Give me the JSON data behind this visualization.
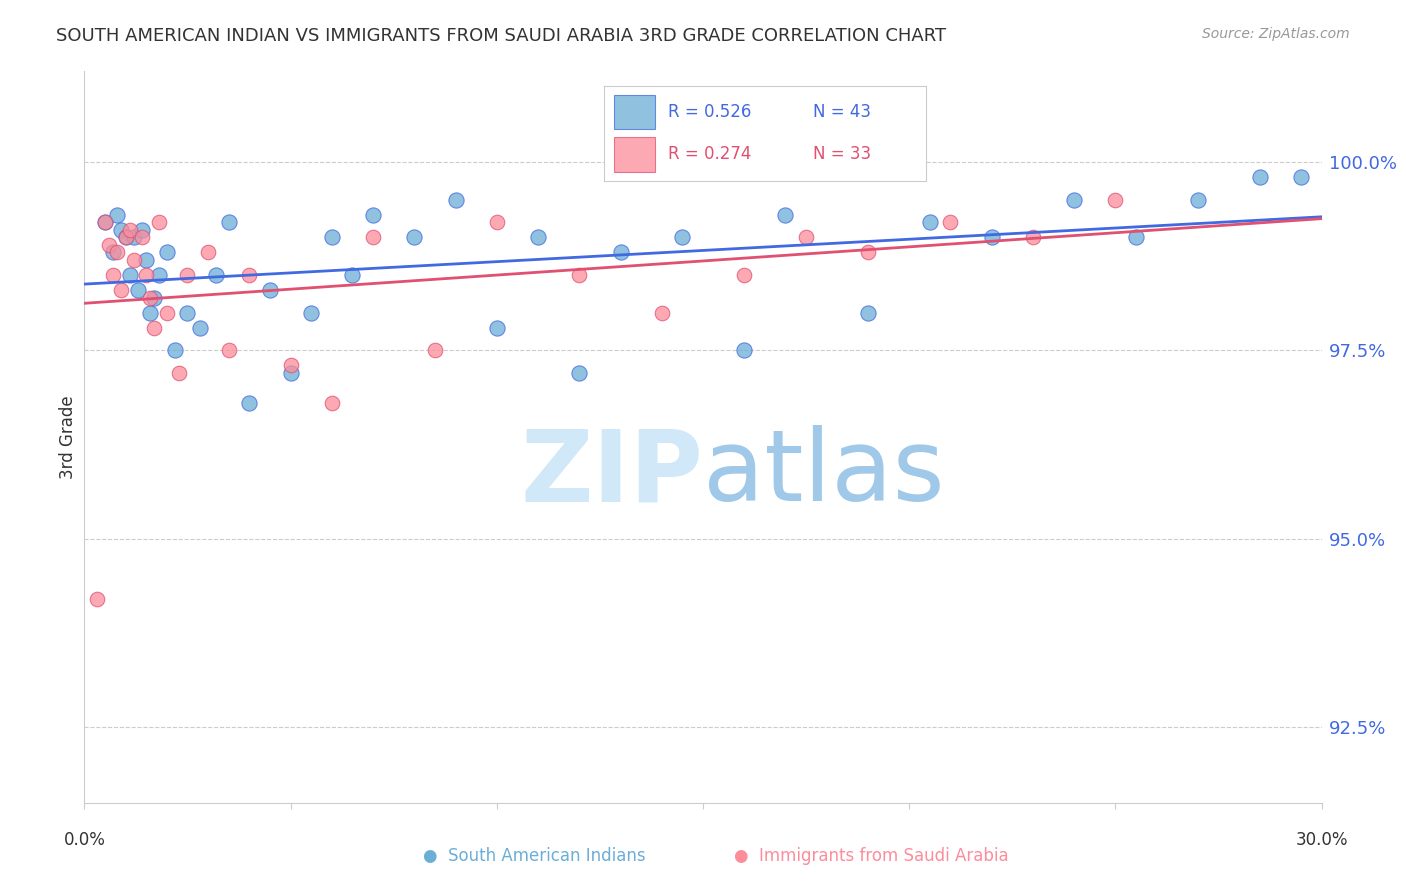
{
  "title": "SOUTH AMERICAN INDIAN VS IMMIGRANTS FROM SAUDI ARABIA 3RD GRADE CORRELATION CHART",
  "source": "Source: ZipAtlas.com",
  "ylabel": "3rd Grade",
  "y_ticks": [
    92.5,
    95.0,
    97.5,
    100.0
  ],
  "y_tick_labels": [
    "92.5%",
    "95.0%",
    "97.5%",
    "100.0%"
  ],
  "xlim": [
    0.0,
    30.0
  ],
  "ylim": [
    91.5,
    101.2
  ],
  "legend_r1": "R = 0.526",
  "legend_n1": "N = 43",
  "legend_r2": "R = 0.274",
  "legend_n2": "N = 33",
  "blue_color": "#6baed6",
  "pink_color": "#fc8d9b",
  "line_blue": "#4169e1",
  "line_pink": "#e05070",
  "watermark_zip_color": "#d0e8f8",
  "watermark_atlas_color": "#a0c8e8",
  "blue_scatter_x": [
    0.5,
    0.7,
    0.8,
    0.9,
    1.0,
    1.1,
    1.2,
    1.3,
    1.4,
    1.5,
    1.6,
    1.7,
    1.8,
    2.0,
    2.2,
    2.5,
    2.8,
    3.2,
    3.5,
    4.0,
    4.5,
    5.0,
    5.5,
    6.0,
    6.5,
    7.0,
    8.0,
    9.0,
    10.0,
    11.0,
    12.0,
    13.0,
    14.5,
    16.0,
    17.0,
    19.0,
    20.5,
    22.0,
    24.0,
    25.5,
    27.0,
    28.5,
    29.5
  ],
  "blue_scatter_y": [
    99.2,
    98.8,
    99.3,
    99.1,
    99.0,
    98.5,
    99.0,
    98.3,
    99.1,
    98.7,
    98.0,
    98.2,
    98.5,
    98.8,
    97.5,
    98.0,
    97.8,
    98.5,
    99.2,
    96.8,
    98.3,
    97.2,
    98.0,
    99.0,
    98.5,
    99.3,
    99.0,
    99.5,
    97.8,
    99.0,
    97.2,
    98.8,
    99.0,
    97.5,
    99.3,
    98.0,
    99.2,
    99.0,
    99.5,
    99.0,
    99.5,
    99.8,
    99.8
  ],
  "pink_scatter_x": [
    0.3,
    0.5,
    0.6,
    0.7,
    0.8,
    0.9,
    1.0,
    1.1,
    1.2,
    1.4,
    1.5,
    1.6,
    1.7,
    1.8,
    2.0,
    2.3,
    2.5,
    3.0,
    3.5,
    4.0,
    5.0,
    6.0,
    7.0,
    8.5,
    10.0,
    12.0,
    14.0,
    16.0,
    17.5,
    19.0,
    21.0,
    23.0,
    25.0
  ],
  "pink_scatter_y": [
    94.2,
    99.2,
    98.9,
    98.5,
    98.8,
    98.3,
    99.0,
    99.1,
    98.7,
    99.0,
    98.5,
    98.2,
    97.8,
    99.2,
    98.0,
    97.2,
    98.5,
    98.8,
    97.5,
    98.5,
    97.3,
    96.8,
    99.0,
    97.5,
    99.2,
    98.5,
    98.0,
    98.5,
    99.0,
    98.8,
    99.2,
    99.0,
    99.5
  ],
  "blue_size": 120,
  "pink_size": 110,
  "tick_color_right": "#4169e1"
}
